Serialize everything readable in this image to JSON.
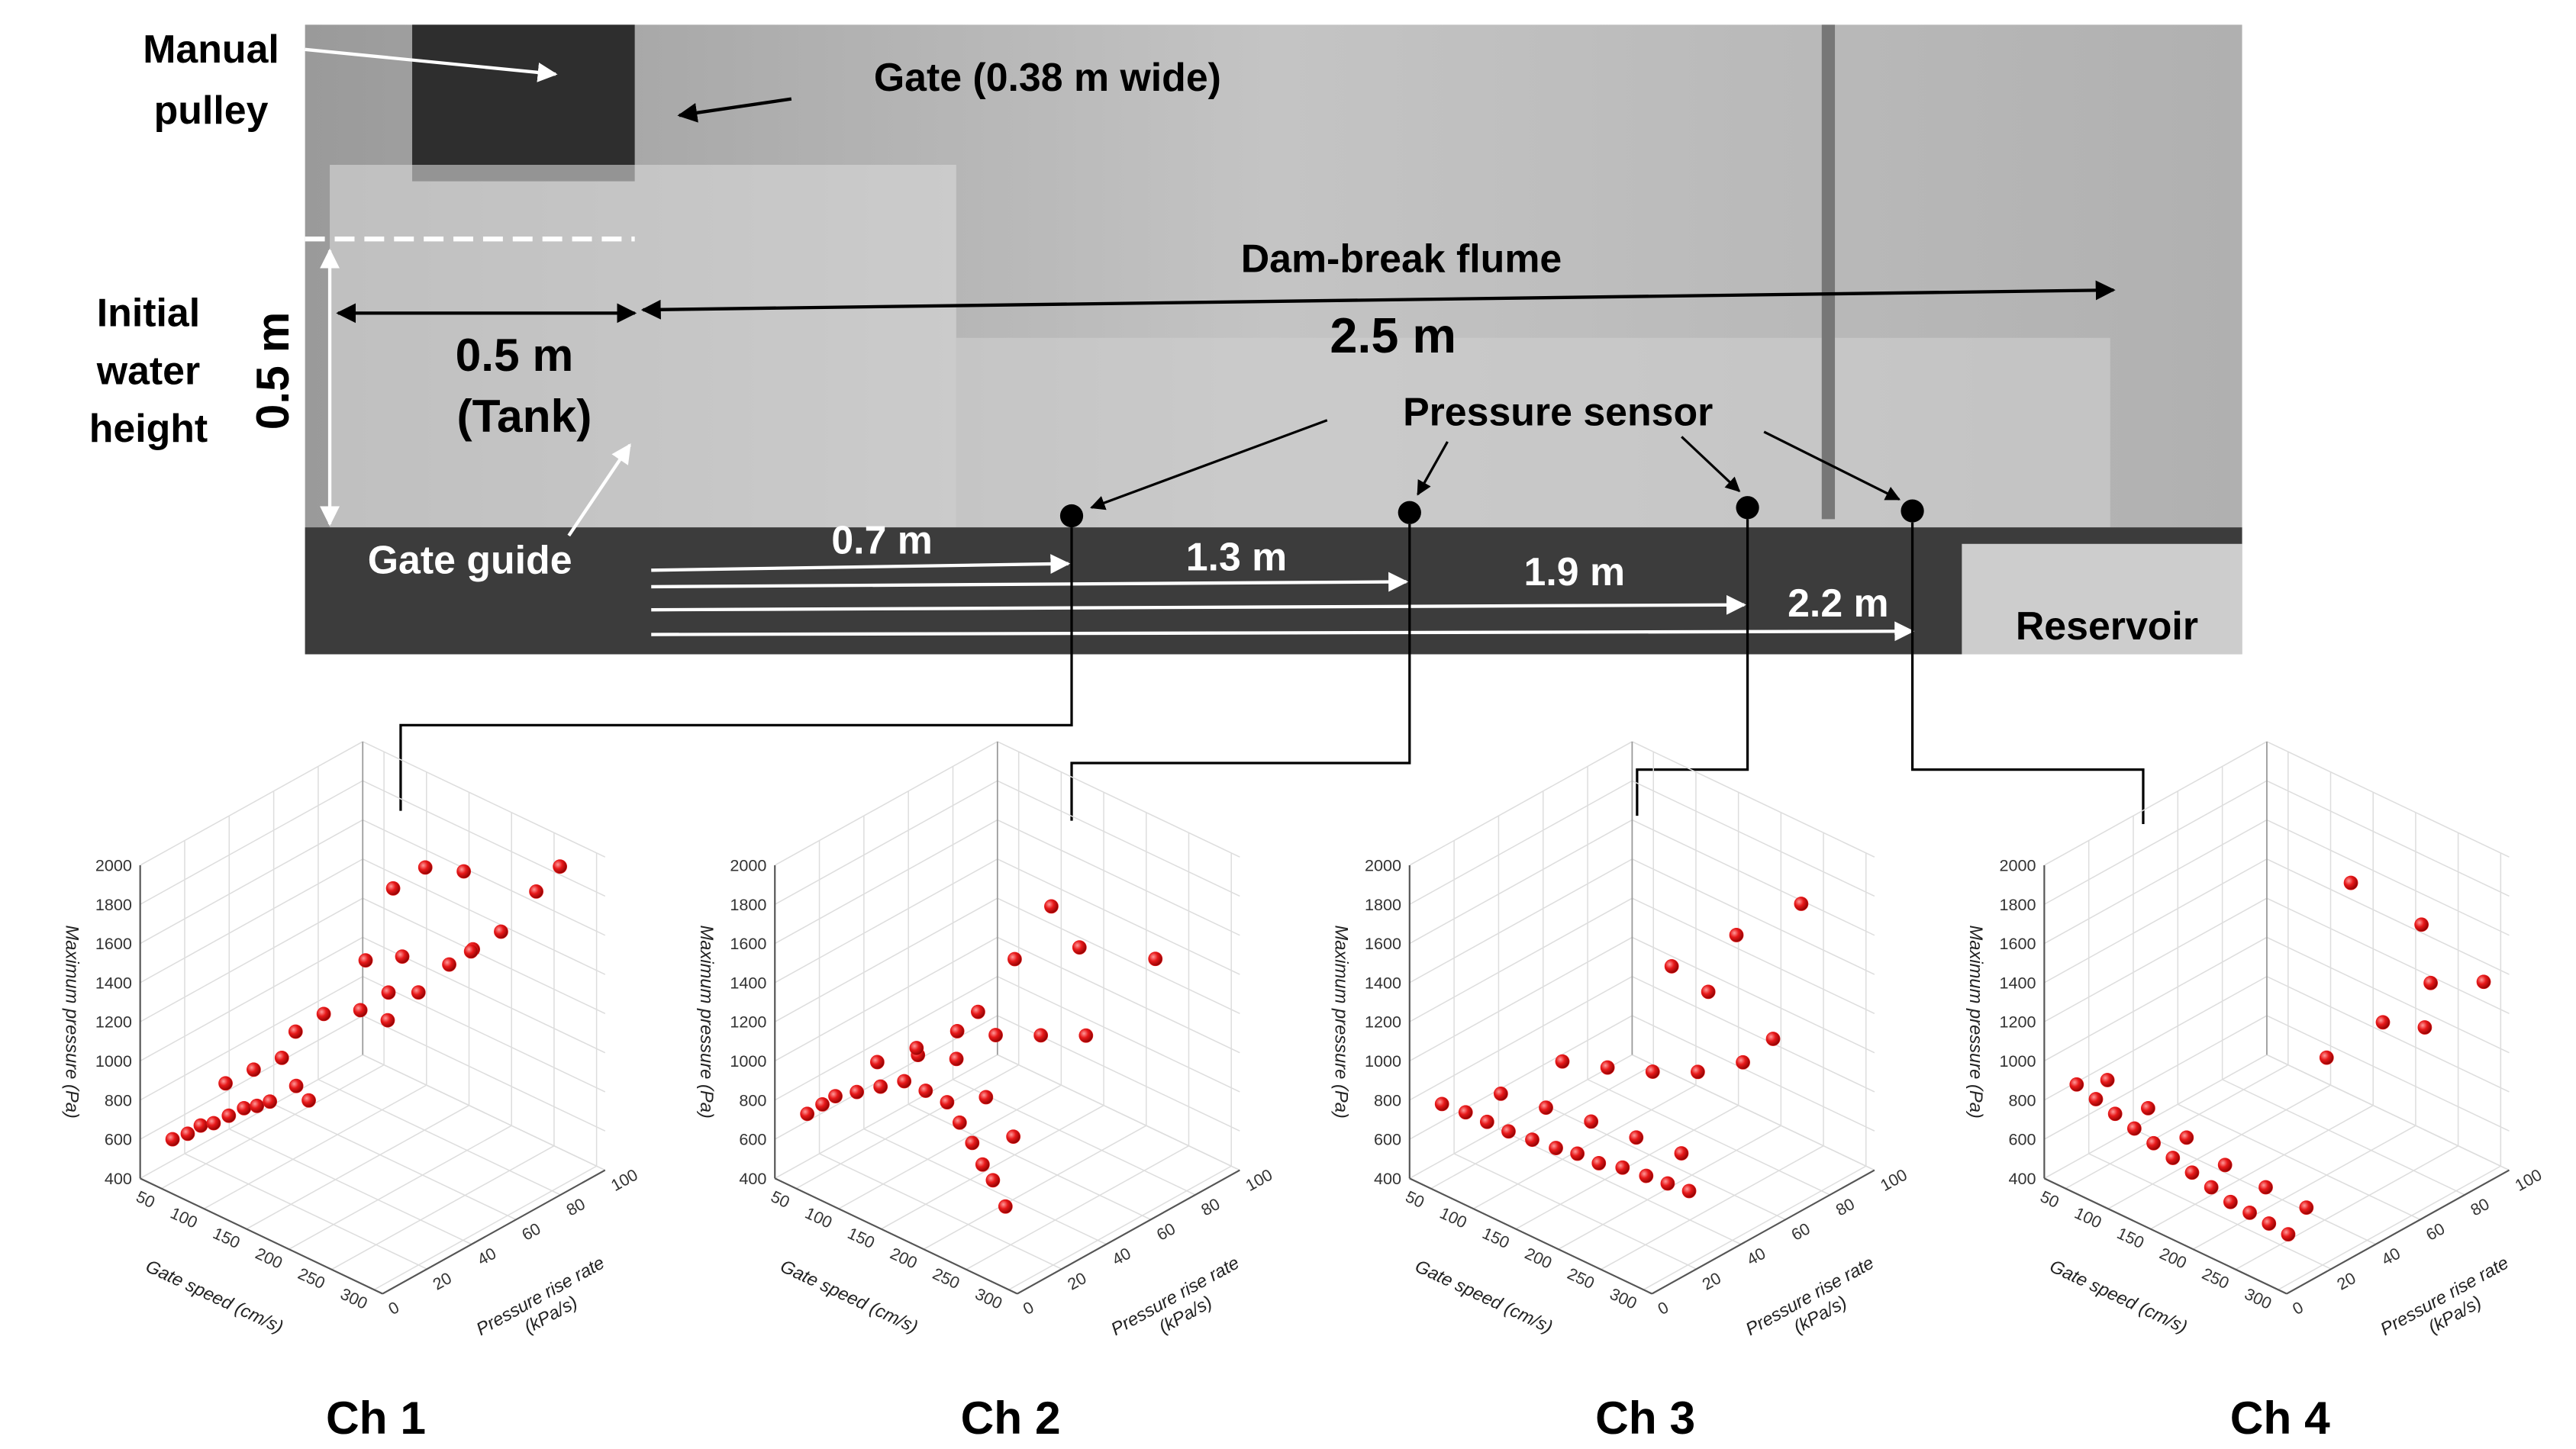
{
  "photo": {
    "manual_pulley": [
      "Manual",
      "pulley"
    ],
    "gate": "Gate (0.38 m wide)",
    "flume": "Dam-break flume",
    "flume_length": "2.5 m",
    "initial_height": [
      "Initial",
      "water",
      "height"
    ],
    "height_value": "0.5 m",
    "tank": [
      "0.5 m",
      "(Tank)"
    ],
    "gate_guide": "Gate guide",
    "pressure_sensor": "Pressure sensor",
    "distances": [
      "0.7 m",
      "1.3 m",
      "1.9 m",
      "2.2 m"
    ],
    "reservoir": "Reservoir"
  },
  "chart_data": [
    {
      "type": "scatter3d",
      "title": "Ch 1",
      "xlabel": "Gate speed (cm/s)",
      "ylabel": [
        "Pressure rise rate",
        "(kPa/s)"
      ],
      "zlabel": "Maximum pressure (Pa)",
      "xlim": [
        25,
        310
      ],
      "ylim": [
        0,
        100
      ],
      "zlim": [
        400,
        2000
      ],
      "xticks": [
        50,
        100,
        150,
        200,
        250,
        300
      ],
      "yticks": [
        0,
        20,
        40,
        60,
        80,
        100
      ],
      "zticks": [
        400,
        600,
        800,
        1000,
        1200,
        1400,
        1600,
        1800,
        2000
      ],
      "grid": true,
      "color": "#e8191a",
      "x": [
        50,
        60,
        70,
        80,
        90,
        100,
        110,
        120,
        60,
        80,
        100,
        130,
        150,
        90,
        110,
        140,
        160,
        180,
        120,
        150,
        200,
        220,
        240,
        100,
        130,
        170,
        210,
        250,
        270,
        190
      ],
      "y": [
        5,
        8,
        10,
        12,
        15,
        18,
        20,
        22,
        25,
        30,
        35,
        30,
        28,
        45,
        50,
        55,
        60,
        52,
        65,
        70,
        72,
        75,
        80,
        85,
        88,
        90,
        78,
        92,
        95,
        62
      ],
      "z": [
        620,
        650,
        700,
        720,
        760,
        800,
        820,
        850,
        800,
        880,
        950,
        900,
        880,
        1000,
        1100,
        1150,
        1250,
        1200,
        1300,
        1350,
        1400,
        1500,
        1600,
        1500,
        1650,
        1700,
        1450,
        1750,
        1900,
        1300
      ]
    },
    {
      "type": "scatter3d",
      "title": "Ch 2",
      "xlabel": "Gate speed (cm/s)",
      "ylabel": [
        "Pressure rise rate",
        "(kPa/s)"
      ],
      "zlabel": "Maximum pressure (Pa)",
      "xlim": [
        25,
        310
      ],
      "ylim": [
        0,
        100
      ],
      "zlim": [
        400,
        2000
      ],
      "xticks": [
        50,
        100,
        150,
        200,
        250,
        300
      ],
      "yticks": [
        0,
        20,
        40,
        60,
        80,
        100
      ],
      "zticks": [
        400,
        600,
        800,
        1000,
        1200,
        1400,
        1600,
        1800,
        2000
      ],
      "grid": true,
      "color": "#e8191a",
      "x": [
        50,
        60,
        70,
        90,
        110,
        130,
        150,
        170,
        190,
        210,
        230,
        250,
        270,
        80,
        120,
        160,
        200,
        240,
        100,
        140,
        180,
        220,
        260,
        150,
        200,
        250,
        120,
        180
      ],
      "y": [
        5,
        8,
        10,
        12,
        15,
        18,
        20,
        22,
        20,
        18,
        15,
        12,
        10,
        25,
        28,
        30,
        28,
        25,
        35,
        38,
        40,
        45,
        50,
        60,
        70,
        85,
        55,
        65
      ],
      "z": [
        750,
        800,
        850,
        900,
        950,
        1000,
        980,
        950,
        900,
        850,
        800,
        780,
        700,
        950,
        1050,
        1100,
        1000,
        900,
        1000,
        1150,
        1200,
        1250,
        1300,
        1400,
        1500,
        1450,
        1100,
        1700
      ]
    },
    {
      "type": "scatter3d",
      "title": "Ch 3",
      "xlabel": "Gate speed (cm/s)",
      "ylabel": [
        "Pressure rise rate",
        "(kPa/s)"
      ],
      "zlabel": "Maximum pressure (Pa)",
      "xlim": [
        25,
        310
      ],
      "ylim": [
        0,
        100
      ],
      "zlim": [
        400,
        2000
      ],
      "xticks": [
        50,
        100,
        150,
        200,
        250,
        300
      ],
      "yticks": [
        0,
        20,
        40,
        60,
        80,
        100
      ],
      "zticks": [
        400,
        600,
        800,
        1000,
        1200,
        1400,
        1600,
        1800,
        2000
      ],
      "grid": true,
      "color": "#e8191a",
      "x": [
        50,
        70,
        90,
        110,
        130,
        150,
        170,
        190,
        210,
        230,
        250,
        270,
        80,
        120,
        160,
        200,
        240,
        100,
        140,
        180,
        220,
        260,
        150,
        200,
        250,
        180,
        230
      ],
      "y": [
        5,
        8,
        10,
        12,
        15,
        18,
        20,
        22,
        25,
        28,
        30,
        32,
        20,
        25,
        30,
        35,
        40,
        40,
        45,
        50,
        55,
        60,
        70,
        80,
        90,
        75,
        85
      ],
      "z": [
        800,
        780,
        760,
        740,
        720,
        700,
        700,
        680,
        680,
        660,
        650,
        640,
        820,
        800,
        780,
        750,
        720,
        900,
        920,
        950,
        1000,
        1100,
        1300,
        1500,
        1700,
        1200,
        1000
      ]
    },
    {
      "type": "scatter3d",
      "title": "Ch 4",
      "xlabel": "Gate speed (cm/s)",
      "ylabel": [
        "Pressure rise rate",
        "(kPa/s)"
      ],
      "zlabel": "Maximum pressure (Pa)",
      "xlim": [
        25,
        310
      ],
      "ylim": [
        0,
        100
      ],
      "zlim": [
        400,
        2000
      ],
      "xticks": [
        50,
        100,
        150,
        200,
        250,
        300
      ],
      "yticks": [
        0,
        20,
        40,
        60,
        80,
        100
      ],
      "zticks": [
        400,
        600,
        800,
        1000,
        1200,
        1400,
        1600,
        1800,
        2000
      ],
      "grid": true,
      "color": "#e8191a",
      "x": [
        50,
        70,
        90,
        110,
        130,
        150,
        170,
        190,
        210,
        230,
        250,
        270,
        60,
        100,
        140,
        180,
        220,
        260,
        200,
        240,
        270,
        150,
        220,
        250,
        280
      ],
      "y": [
        5,
        6,
        7,
        8,
        9,
        10,
        11,
        12,
        13,
        14,
        15,
        16,
        15,
        18,
        20,
        22,
        25,
        28,
        60,
        70,
        80,
        90,
        95,
        85,
        100
      ],
      "z": [
        900,
        860,
        820,
        780,
        740,
        700,
        660,
        620,
        580,
        560,
        540,
        520,
        880,
        800,
        720,
        650,
        600,
        560,
        1000,
        1200,
        1400,
        1600,
        1500,
        1100,
        1300
      ]
    }
  ]
}
